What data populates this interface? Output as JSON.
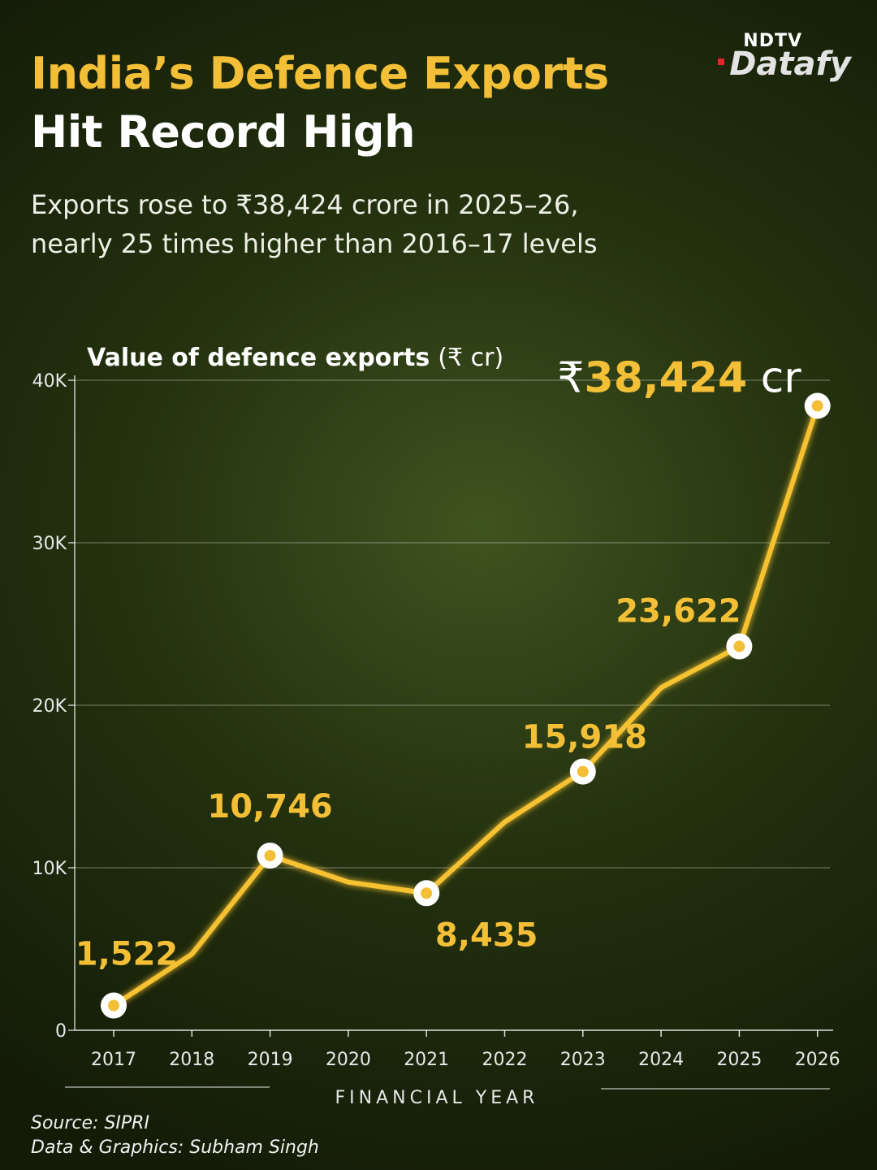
{
  "brand": {
    "line1": "NDTV",
    "line2": "Datafy"
  },
  "header": {
    "title_line1": "India’s Defence Exports",
    "title_line2": "Hit Record High",
    "subtitle_line1": "Exports rose to ₹38,424 crore in 2025–26,",
    "subtitle_line2": "nearly 25 times higher than 2016–17 levels"
  },
  "footer": {
    "source": "Source: SIPRI",
    "credit": "Data & Graphics: Subham Singh"
  },
  "colors": {
    "accent": "#f2bf36",
    "line": "#f6c233",
    "text": "#ffffff"
  },
  "chart_data": {
    "type": "line",
    "title": "Value of defence exports",
    "title_unit": "(₹ cr)",
    "xlabel": "FINANCIAL YEAR",
    "ylabel": "",
    "x": [
      "2017",
      "2018",
      "2019",
      "2020",
      "2021",
      "2022",
      "2023",
      "2024",
      "2025",
      "2026"
    ],
    "values": [
      1522,
      4682,
      10746,
      9116,
      8435,
      12815,
      15918,
      21083,
      23622,
      38424
    ],
    "ylim": [
      0,
      40000
    ],
    "yticks": [
      0,
      10000,
      20000,
      30000,
      40000
    ],
    "ytick_labels": [
      "0",
      "10K",
      "20K",
      "30K",
      "40K"
    ],
    "grid": true,
    "highlights": [
      {
        "x": "2017",
        "label": "1,522"
      },
      {
        "x": "2019",
        "label": "10,746"
      },
      {
        "x": "2021",
        "label": "8,435"
      },
      {
        "x": "2023",
        "label": "15,918"
      },
      {
        "x": "2025",
        "label": "23,622"
      },
      {
        "x": "2026",
        "label_prefix": "₹",
        "label": "38,424",
        "label_suffix": " cr"
      }
    ]
  }
}
